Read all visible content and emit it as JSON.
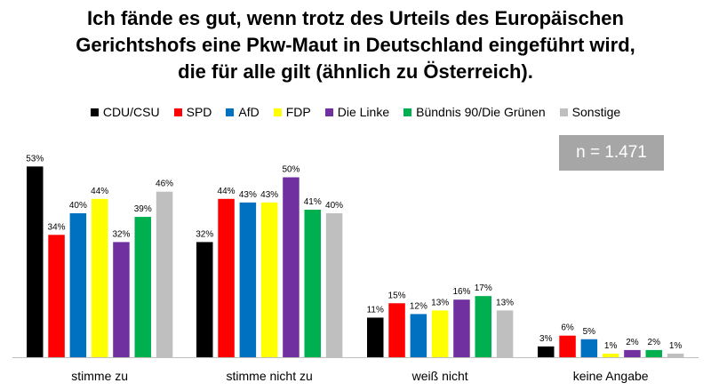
{
  "chart_data": {
    "type": "bar",
    "title": "",
    "title_lines": [
      "Ich fände es gut, wenn trotz des Urteils des Europäischen",
      "Gerichtshofs eine Pkw-Maut in Deutschland eingeführt wird,",
      "die für alle gilt (ähnlich zu Österreich)."
    ],
    "xlabel": "",
    "ylabel": "",
    "ylim": [
      0,
      60
    ],
    "grid": false,
    "legend_position": "top",
    "categories": [
      "stimme zu",
      "stimme nicht zu",
      "weiß nicht",
      "keine Angabe"
    ],
    "series": [
      {
        "name": "CDU/CSU",
        "color": "#000000",
        "values": [
          53,
          32,
          11,
          3
        ],
        "labels": [
          "53%",
          "32%",
          "11%",
          "3%"
        ]
      },
      {
        "name": "SPD",
        "color": "#ff0000",
        "values": [
          34,
          44,
          15,
          6
        ],
        "labels": [
          "34%",
          "44%",
          "15%",
          "6%"
        ]
      },
      {
        "name": "AfD",
        "color": "#0070c0",
        "values": [
          40,
          43,
          12,
          5
        ],
        "labels": [
          "40%",
          "43%",
          "12%",
          "5%"
        ]
      },
      {
        "name": "FDP",
        "color": "#ffff00",
        "values": [
          44,
          43,
          13,
          1
        ],
        "labels": [
          "44%",
          "43%",
          "13%",
          "1%"
        ]
      },
      {
        "name": "Die Linke",
        "color": "#7030a0",
        "values": [
          32,
          50,
          16,
          2
        ],
        "labels": [
          "32%",
          "50%",
          "16%",
          "2%"
        ]
      },
      {
        "name": "Bündnis 90/Die Grünen",
        "color": "#00b050",
        "values": [
          39,
          41,
          17,
          2
        ],
        "labels": [
          "39%",
          "41%",
          "17%",
          "2%"
        ]
      },
      {
        "name": "Sonstige",
        "color": "#bfbfbf",
        "values": [
          46,
          40,
          13,
          1
        ],
        "labels": [
          "46%",
          "40%",
          "13%",
          "1%"
        ]
      }
    ],
    "annotation": "n = 1.471"
  }
}
